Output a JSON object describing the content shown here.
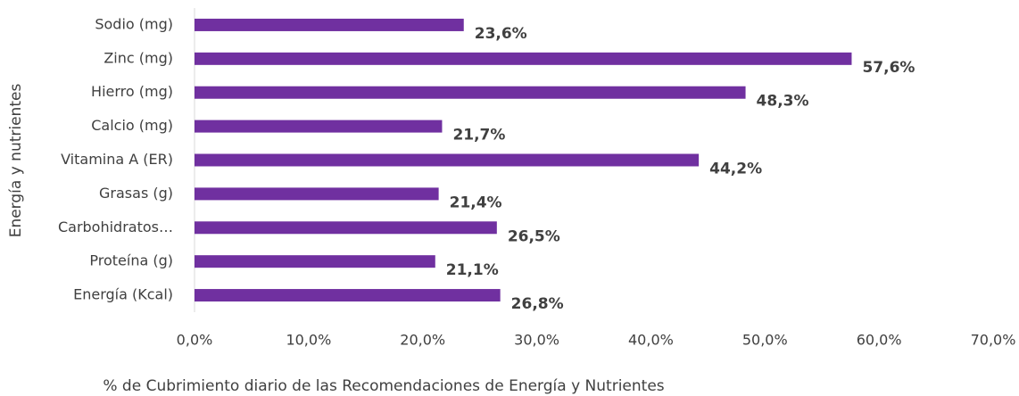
{
  "chart_data": {
    "type": "barh",
    "xlabel": "% de Cubrimiento diario de las Recomendaciones de Energía y Nutrientes",
    "ylabel": "Energía y nutrientes",
    "categories": [
      "Sodio (mg)",
      "Zinc (mg)",
      "Hierro (mg)",
      "Calcio (mg)",
      "Vitamina A (ER)",
      "Grasas (g)",
      "Carbohidratos…",
      "Proteína (g)",
      "Energía (Kcal)"
    ],
    "values": [
      23.6,
      57.6,
      48.3,
      21.7,
      44.2,
      21.4,
      26.5,
      21.1,
      26.8
    ],
    "value_labels": [
      "23,6%",
      "57,6%",
      "48,3%",
      "21,7%",
      "44,2%",
      "21,4%",
      "26,5%",
      "21,1%",
      "26,8%"
    ],
    "color": "#7030a0",
    "xlim": [
      0,
      70
    ],
    "xticks": [
      {
        "value": 0,
        "label": "0,0%"
      },
      {
        "value": 10,
        "label": "10,0%"
      },
      {
        "value": 20,
        "label": "20,0%"
      },
      {
        "value": 30,
        "label": "30,0%"
      },
      {
        "value": 40,
        "label": "40,0%"
      },
      {
        "value": 50,
        "label": "50,0%"
      },
      {
        "value": 60,
        "label": "60,0%"
      },
      {
        "value": 70,
        "label": "70,0%"
      }
    ],
    "grid": false
  }
}
